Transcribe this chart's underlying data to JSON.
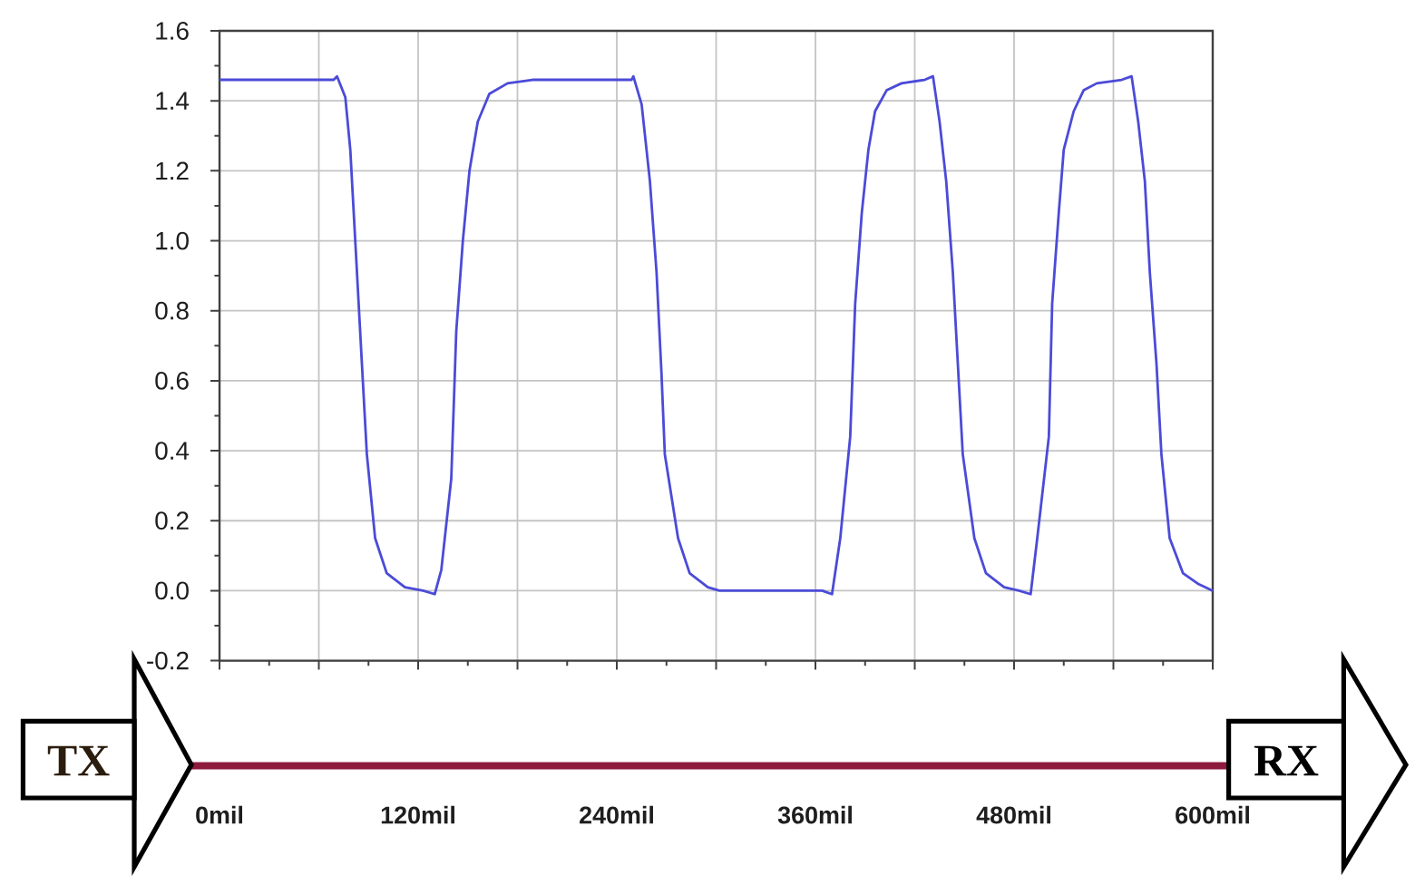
{
  "chart_data": {
    "type": "line",
    "x": [
      0,
      69,
      71,
      76,
      79,
      82,
      86,
      89,
      94,
      101,
      112,
      123,
      130,
      134,
      140,
      143,
      147,
      151,
      156,
      163,
      174,
      189,
      249,
      250,
      255,
      260,
      264,
      267,
      269,
      277,
      284,
      295,
      302,
      364,
      370,
      375,
      381,
      384,
      388,
      392,
      396,
      403,
      412,
      426,
      431,
      435,
      439,
      443,
      446,
      449,
      456,
      463,
      474,
      483,
      490,
      494,
      501,
      503,
      507,
      510,
      516,
      522,
      530,
      545,
      551,
      555,
      559,
      562,
      566,
      569,
      574,
      582,
      591,
      600
    ],
    "series": [
      {
        "color": "#4b4bd8",
        "values": [
          1.46,
          1.46,
          1.47,
          1.41,
          1.26,
          1.0,
          0.65,
          0.39,
          0.15,
          0.05,
          0.01,
          0.0,
          -0.01,
          0.06,
          0.32,
          0.74,
          1.0,
          1.2,
          1.34,
          1.42,
          1.45,
          1.46,
          1.46,
          1.47,
          1.39,
          1.17,
          0.91,
          0.62,
          0.39,
          0.15,
          0.05,
          0.01,
          0.0,
          0.0,
          -0.01,
          0.15,
          0.44,
          0.82,
          1.08,
          1.26,
          1.37,
          1.43,
          1.45,
          1.46,
          1.47,
          1.34,
          1.17,
          0.91,
          0.65,
          0.39,
          0.15,
          0.05,
          0.01,
          0.0,
          -0.01,
          0.15,
          0.44,
          0.82,
          1.08,
          1.26,
          1.37,
          1.43,
          1.45,
          1.46,
          1.47,
          1.34,
          1.17,
          0.91,
          0.65,
          0.39,
          0.15,
          0.05,
          0.02,
          0.0
        ]
      }
    ],
    "xlim": [
      0,
      600
    ],
    "ylim": [
      -0.2,
      1.6
    ],
    "xticks": [
      {
        "value": 0,
        "label": "0mil"
      },
      {
        "value": 60,
        "label": null
      },
      {
        "value": 120,
        "label": "120mil"
      },
      {
        "value": 180,
        "label": null
      },
      {
        "value": 240,
        "label": "240mil"
      },
      {
        "value": 300,
        "label": null
      },
      {
        "value": 360,
        "label": "360mil"
      },
      {
        "value": 420,
        "label": null
      },
      {
        "value": 480,
        "label": "480mil"
      },
      {
        "value": 540,
        "label": null
      },
      {
        "value": 600,
        "label": "600mil"
      }
    ],
    "yticks": [
      -0.2,
      {
        "value": 0,
        "label": "0.0"
      },
      0.2,
      0.4,
      0.6,
      0.8,
      {
        "value": 1,
        "label": "1.0"
      },
      1.2,
      1.4,
      1.6
    ],
    "grid": true,
    "annotations": [
      "TX",
      "RX"
    ]
  }
}
